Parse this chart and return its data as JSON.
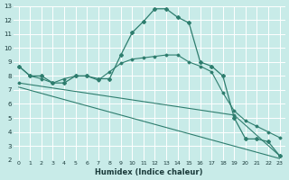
{
  "xlabel": "Humidex (Indice chaleur)",
  "background_color": "#c8ebe8",
  "grid_color": "#ffffff",
  "line_color": "#2e7d6e",
  "xlim": [
    -0.5,
    23.5
  ],
  "ylim": [
    2,
    13
  ],
  "xticks": [
    0,
    1,
    2,
    3,
    4,
    5,
    6,
    7,
    8,
    9,
    10,
    11,
    12,
    13,
    14,
    15,
    16,
    17,
    18,
    19,
    20,
    21,
    22,
    23
  ],
  "yticks": [
    2,
    3,
    4,
    5,
    6,
    7,
    8,
    9,
    10,
    11,
    12,
    13
  ],
  "line1_x": [
    0,
    1,
    2,
    3,
    4,
    5,
    6,
    7,
    8,
    9,
    10,
    11,
    12,
    13,
    14,
    15,
    16,
    17,
    18,
    19,
    20,
    21,
    22,
    23
  ],
  "line1_y": [
    8.7,
    8.0,
    8.0,
    7.5,
    7.5,
    8.0,
    8.0,
    7.8,
    7.8,
    9.5,
    11.1,
    11.9,
    12.8,
    12.8,
    12.2,
    11.8,
    9.0,
    8.7,
    8.0,
    5.0,
    3.5,
    3.5,
    3.3,
    2.3
  ],
  "line2_x": [
    0,
    1,
    2,
    3,
    4,
    5,
    6,
    7,
    8,
    9,
    10,
    11,
    12,
    13,
    14,
    15,
    16,
    17,
    18,
    19,
    20,
    21,
    22,
    23
  ],
  "line2_y": [
    8.7,
    8.0,
    7.8,
    7.5,
    7.8,
    8.0,
    8.0,
    7.7,
    8.3,
    8.9,
    9.2,
    9.3,
    9.4,
    9.5,
    9.5,
    9.0,
    8.7,
    8.3,
    6.8,
    5.5,
    4.8,
    4.4,
    4.0,
    3.6
  ],
  "line3_x": [
    0,
    19,
    23
  ],
  "line3_y": [
    7.5,
    5.2,
    2.3
  ],
  "line4_x": [
    0,
    23
  ],
  "line4_y": [
    7.2,
    2.1
  ]
}
